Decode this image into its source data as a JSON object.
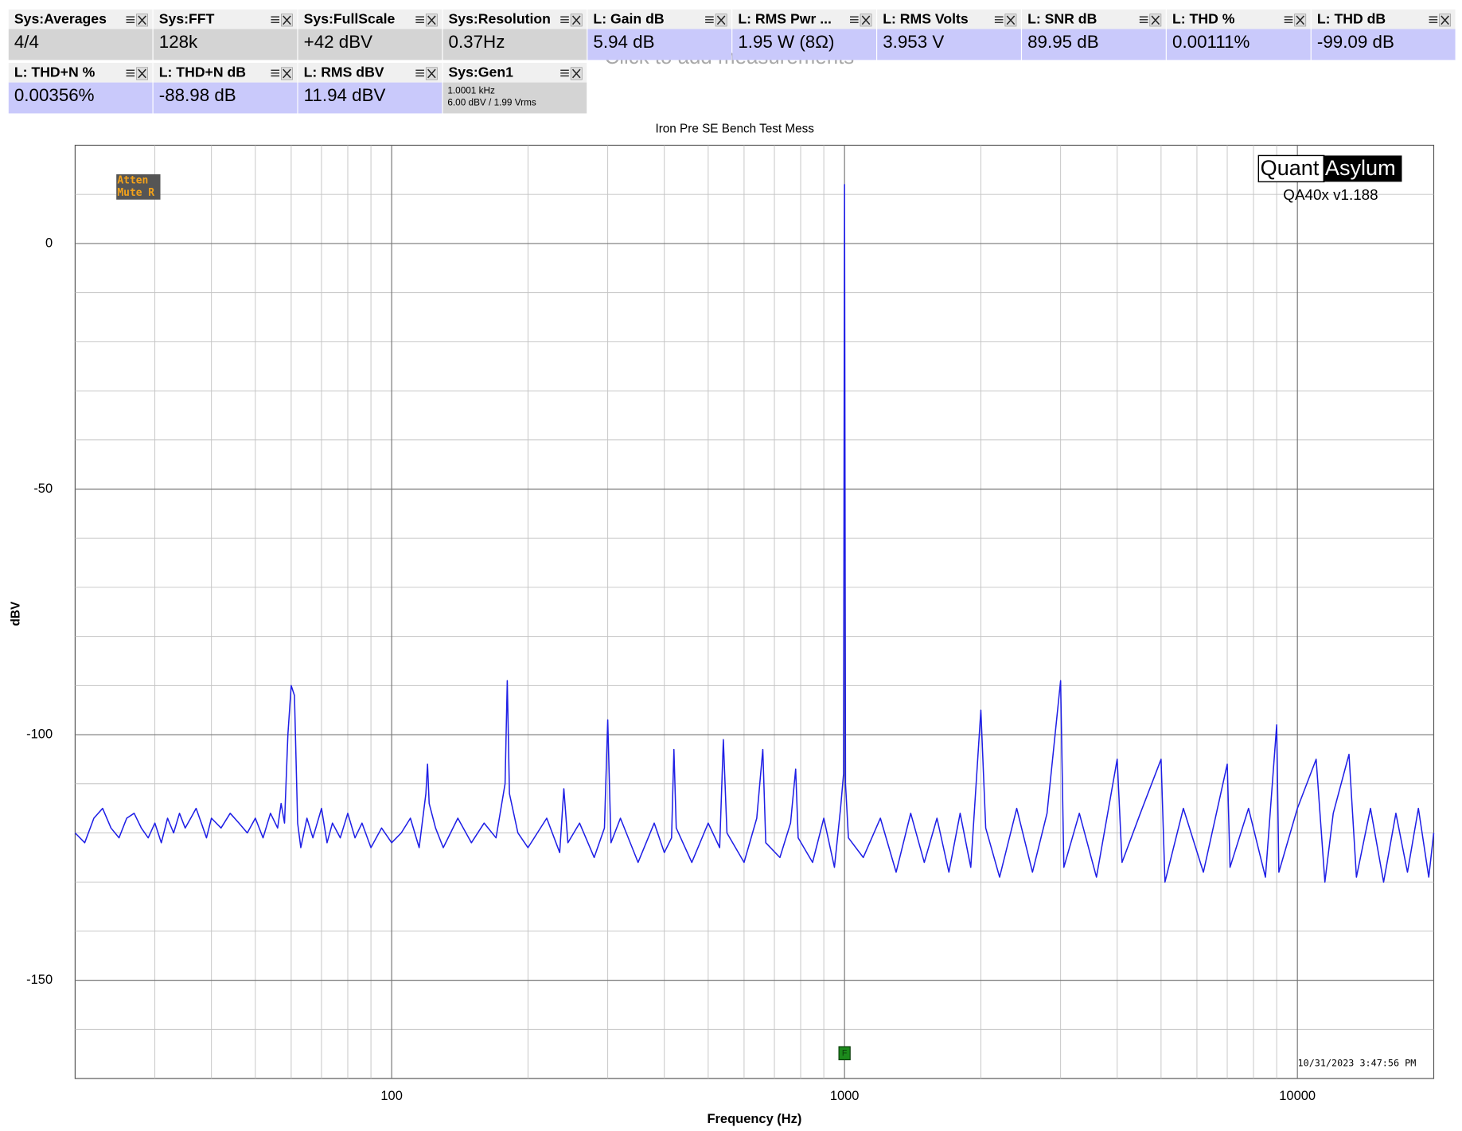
{
  "tiles": [
    [
      {
        "label": "Sys:Averages",
        "value": "4/4",
        "color": "#d4d4d4"
      },
      {
        "label": "Sys:FFT",
        "value": "128k",
        "color": "#d4d4d4"
      },
      {
        "label": "Sys:FullScale",
        "value": "+42 dBV",
        "color": "#d4d4d4"
      },
      {
        "label": "Sys:Resolution",
        "value": "0.37Hz",
        "color": "#d4d4d4"
      },
      {
        "label": "L: Gain dB",
        "value": "5.94 dB",
        "color": "#c9c9fb"
      },
      {
        "label": "L: RMS Pwr ...",
        "value": "1.95 W (8Ω)",
        "color": "#c9c9fb"
      },
      {
        "label": "L: RMS Volts",
        "value": "3.953 V",
        "color": "#c9c9fb"
      },
      {
        "label": "L: SNR dB",
        "value": "89.95 dB",
        "color": "#c9c9fb"
      },
      {
        "label": "L: THD %",
        "value": "0.00111%",
        "color": "#c9c9fb"
      },
      {
        "label": "L: THD dB",
        "value": "-99.09 dB",
        "color": "#c9c9fb"
      }
    ],
    [
      {
        "label": "L: THD+N %",
        "value": "0.00356%",
        "color": "#c9c9fb"
      },
      {
        "label": "L: THD+N dB",
        "value": "-88.98 dB",
        "color": "#c9c9fb"
      },
      {
        "label": "L: RMS dBV",
        "value": "11.94 dBV",
        "color": "#c9c9fb"
      },
      {
        "label": "Sys:Gen1",
        "value_lines": [
          "1.0001 kHz",
          "6.00 dBV  / 1.99 Vrms"
        ],
        "color": "#d4d4d4"
      }
    ]
  ],
  "add_hint": "Click to add measurements",
  "badge": [
    "Atten",
    "Mute R"
  ],
  "logo": {
    "left": "Quant",
    "right": "Asylum",
    "version": "QA40x v1.188"
  },
  "timestamp": "10/31/2023 3:47:56 PM",
  "marker": {
    "x": 1000,
    "label": "F"
  },
  "chart_data": {
    "type": "line",
    "title": "Iron Pre SE Bench Test Mess",
    "x_label": "Frequency (Hz)",
    "y_label": "dBV",
    "xscale": "log",
    "xlim": [
      20,
      20000
    ],
    "xticks": [
      100,
      1000,
      10000
    ],
    "x_minor_ticks": [
      30,
      40,
      50,
      60,
      70,
      80,
      90,
      200,
      300,
      400,
      500,
      600,
      700,
      800,
      900,
      2000,
      3000,
      4000,
      5000,
      6000,
      7000,
      8000,
      9000
    ],
    "ylim": [
      -170,
      20
    ],
    "yticks": [
      -150,
      -100,
      -50,
      0
    ],
    "y_minor_ticks": [
      -160,
      -140,
      -130,
      -120,
      -110,
      -90,
      -80,
      -70,
      -60,
      -40,
      -30,
      -20,
      -10,
      10
    ],
    "grid": true,
    "color": "#1f1fe6",
    "x": [
      20,
      21,
      22,
      23,
      24,
      25,
      26,
      27,
      28,
      29,
      30,
      31,
      32,
      33,
      34,
      35,
      36,
      37,
      38,
      39,
      40,
      42,
      44,
      46,
      48,
      50,
      52,
      54,
      56,
      57,
      58,
      59,
      60,
      61,
      62,
      63,
      65,
      67,
      70,
      72,
      74,
      77,
      80,
      83,
      86,
      90,
      95,
      100,
      105,
      110,
      115,
      119,
      120,
      121,
      125,
      130,
      140,
      150,
      160,
      170,
      178,
      180,
      182,
      190,
      200,
      220,
      235,
      240,
      245,
      260,
      280,
      295,
      300,
      305,
      320,
      350,
      380,
      400,
      415,
      420,
      425,
      460,
      500,
      530,
      540,
      550,
      600,
      640,
      660,
      670,
      720,
      760,
      780,
      790,
      850,
      900,
      950,
      980,
      995,
      1000,
      1005,
      1020,
      1100,
      1200,
      1300,
      1400,
      1500,
      1600,
      1700,
      1800,
      1900,
      2000,
      2050,
      2200,
      2400,
      2600,
      2800,
      3000,
      3050,
      3300,
      3600,
      4000,
      4100,
      4500,
      5000,
      5100,
      5600,
      6200,
      7000,
      7100,
      7800,
      8500,
      9000,
      9100,
      10000,
      11000,
      11500,
      12000,
      13000,
      13500,
      14500,
      15500,
      16500,
      17500,
      18500,
      19500,
      20000
    ],
    "values": [
      -120,
      -122,
      -117,
      -115,
      -119,
      -121,
      -117,
      -116,
      -119,
      -121,
      -118,
      -122,
      -117,
      -120,
      -116,
      -119,
      -117,
      -115,
      -118,
      -121,
      -117,
      -119,
      -116,
      -118,
      -120,
      -117,
      -121,
      -116,
      -119,
      -114,
      -118,
      -100,
      -90,
      -92,
      -118,
      -123,
      -117,
      -121,
      -115,
      -122,
      -118,
      -121,
      -116,
      -121,
      -118,
      -123,
      -119,
      -122,
      -120,
      -117,
      -123,
      -112,
      -106,
      -114,
      -119,
      -123,
      -117,
      -122,
      -118,
      -121,
      -110,
      -89,
      -112,
      -120,
      -123,
      -117,
      -124,
      -111,
      -122,
      -118,
      -125,
      -119,
      -97,
      -122,
      -117,
      -126,
      -118,
      -124,
      -121,
      -103,
      -119,
      -126,
      -118,
      -123,
      -101,
      -120,
      -126,
      -117,
      -103,
      -122,
      -125,
      -118,
      -107,
      -121,
      -126,
      -117,
      -127,
      -115,
      -108,
      12,
      -110,
      -121,
      -125,
      -117,
      -128,
      -116,
      -126,
      -117,
      -128,
      -116,
      -127,
      -95,
      -119,
      -129,
      -115,
      -128,
      -116,
      -89,
      -127,
      -116,
      -129,
      -105,
      -126,
      -116,
      -105,
      -130,
      -115,
      -128,
      -106,
      -127,
      -115,
      -129,
      -98,
      -128,
      -115,
      -105,
      -130,
      -116,
      -104,
      -129,
      -115,
      -130,
      -116,
      -128,
      -115,
      -129,
      -120
    ]
  }
}
